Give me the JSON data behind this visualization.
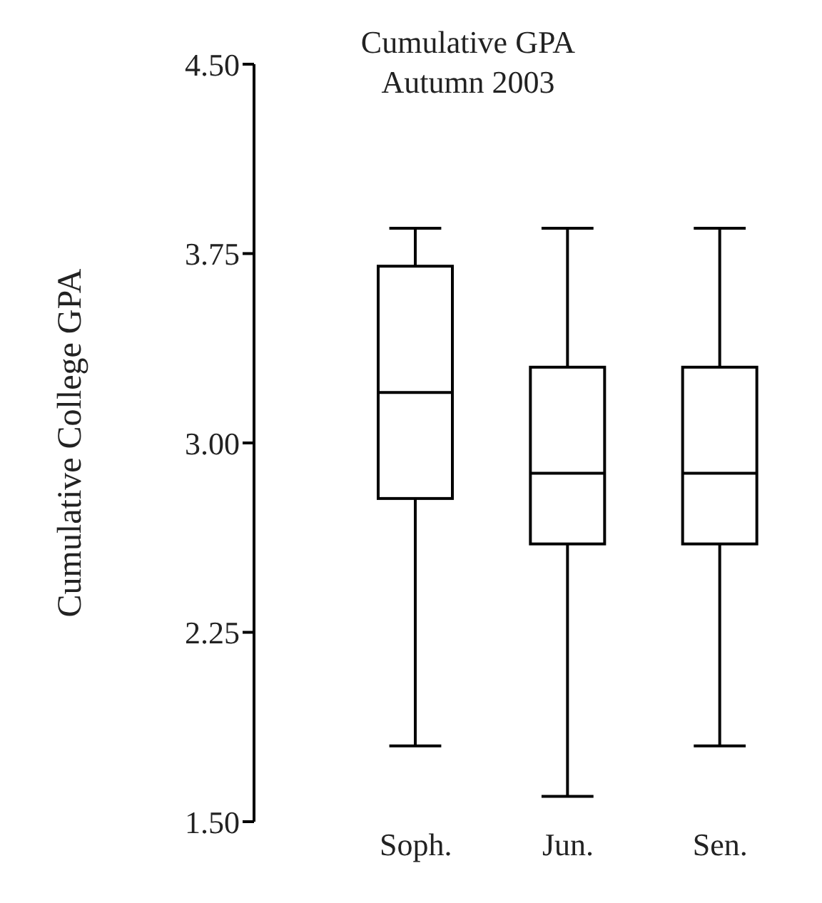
{
  "chart_data": {
    "type": "box",
    "title": "Cumulative GPA Autumn 2003",
    "ylabel": "Cumulative College GPA",
    "categories": [
      "Soph.",
      "Jun.",
      "Sen."
    ],
    "boxes": [
      {
        "low": 1.8,
        "q1": 2.78,
        "median": 3.2,
        "q3": 3.7,
        "high": 3.85
      },
      {
        "low": 1.6,
        "q1": 2.6,
        "median": 2.88,
        "q3": 3.3,
        "high": 3.85
      },
      {
        "low": 1.8,
        "q1": 2.6,
        "median": 2.88,
        "q3": 3.3,
        "high": 3.85
      }
    ],
    "color": "#000000",
    "ylim": [
      1.5,
      4.5
    ],
    "yticks": [
      {
        "value": 1.5,
        "label": "1.50"
      },
      {
        "value": 2.25,
        "label": "2.25"
      },
      {
        "value": 3,
        "label": "3.00"
      },
      {
        "value": 3.75,
        "label": "3.75"
      },
      {
        "value": 4.5,
        "label": "4.50"
      }
    ],
    "grid": false
  }
}
